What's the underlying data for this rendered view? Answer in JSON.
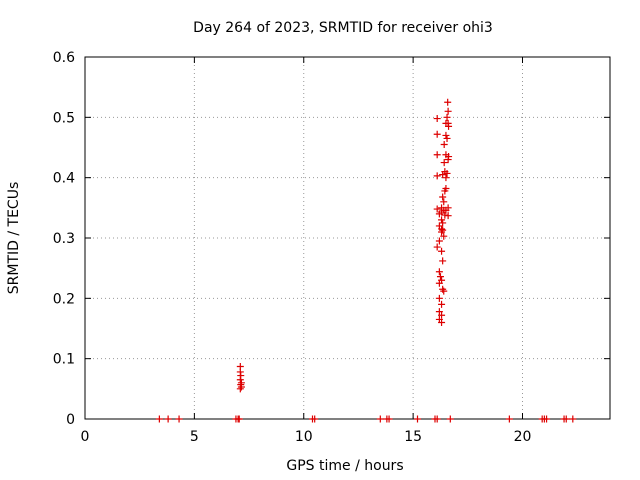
{
  "chart_data": {
    "type": "scatter",
    "title": "Day 264 of 2023, SRMTID for receiver ohi3",
    "xlabel": "GPS time / hours",
    "ylabel": "SRMTID / TECUs",
    "xlim": [
      0,
      24
    ],
    "ylim": [
      0,
      0.6
    ],
    "x_ticks": [
      0,
      5,
      10,
      15,
      20
    ],
    "y_ticks": [
      0,
      0.1,
      0.2,
      0.3,
      0.4,
      0.5,
      0.6
    ],
    "x_tick_labels": [
      "0",
      "5",
      "10",
      "15",
      "20"
    ],
    "y_tick_labels": [
      "0",
      "0.1",
      "0.2",
      "0.3",
      "0.4",
      "0.5",
      "0.6"
    ],
    "grid": true,
    "marker": "+",
    "color": "#dd0000",
    "series": [
      {
        "name": "ohi3",
        "points": [
          [
            3.4,
            0
          ],
          [
            3.8,
            0
          ],
          [
            4.3,
            0
          ],
          [
            6.9,
            0
          ],
          [
            7.0,
            0
          ],
          [
            7.05,
            0
          ],
          [
            10.4,
            0
          ],
          [
            10.5,
            0
          ],
          [
            13.5,
            0
          ],
          [
            13.8,
            0
          ],
          [
            13.9,
            0
          ],
          [
            15.2,
            0
          ],
          [
            16.0,
            0
          ],
          [
            16.1,
            0
          ],
          [
            16.7,
            0
          ],
          [
            19.4,
            0
          ],
          [
            20.9,
            0
          ],
          [
            21.0,
            0
          ],
          [
            21.1,
            0
          ],
          [
            21.9,
            0
          ],
          [
            22.0,
            0
          ],
          [
            22.3,
            0
          ],
          [
            7.1,
            0.087
          ],
          [
            7.1,
            0.078
          ],
          [
            7.12,
            0.072
          ],
          [
            7.1,
            0.065
          ],
          [
            7.15,
            0.06
          ],
          [
            7.12,
            0.057
          ],
          [
            7.15,
            0.053
          ],
          [
            7.1,
            0.05
          ],
          [
            16.58,
            0.525
          ],
          [
            16.6,
            0.51
          ],
          [
            16.55,
            0.5
          ],
          [
            16.1,
            0.498
          ],
          [
            16.6,
            0.49
          ],
          [
            16.5,
            0.49
          ],
          [
            16.62,
            0.485
          ],
          [
            16.1,
            0.472
          ],
          [
            16.5,
            0.47
          ],
          [
            16.55,
            0.465
          ],
          [
            16.42,
            0.455
          ],
          [
            16.1,
            0.438
          ],
          [
            16.5,
            0.438
          ],
          [
            16.62,
            0.435
          ],
          [
            16.6,
            0.43
          ],
          [
            16.42,
            0.425
          ],
          [
            16.45,
            0.41
          ],
          [
            16.55,
            0.407
          ],
          [
            16.35,
            0.405
          ],
          [
            16.1,
            0.403
          ],
          [
            16.5,
            0.4
          ],
          [
            16.5,
            0.382
          ],
          [
            16.45,
            0.378
          ],
          [
            16.35,
            0.368
          ],
          [
            16.4,
            0.36
          ],
          [
            16.6,
            0.35
          ],
          [
            16.3,
            0.35
          ],
          [
            16.1,
            0.348
          ],
          [
            16.4,
            0.346
          ],
          [
            16.5,
            0.346
          ],
          [
            16.3,
            0.343
          ],
          [
            16.2,
            0.34
          ],
          [
            16.45,
            0.338
          ],
          [
            16.6,
            0.337
          ],
          [
            16.3,
            0.33
          ],
          [
            16.35,
            0.325
          ],
          [
            16.2,
            0.32
          ],
          [
            16.3,
            0.315
          ],
          [
            16.35,
            0.313
          ],
          [
            16.3,
            0.31
          ],
          [
            16.4,
            0.303
          ],
          [
            16.2,
            0.295
          ],
          [
            16.1,
            0.285
          ],
          [
            16.3,
            0.278
          ],
          [
            16.35,
            0.262
          ],
          [
            16.2,
            0.244
          ],
          [
            16.25,
            0.236
          ],
          [
            16.3,
            0.23
          ],
          [
            16.2,
            0.225
          ],
          [
            16.35,
            0.215
          ],
          [
            16.4,
            0.212
          ],
          [
            16.2,
            0.2
          ],
          [
            16.3,
            0.19
          ],
          [
            16.2,
            0.178
          ],
          [
            16.3,
            0.172
          ],
          [
            16.2,
            0.165
          ],
          [
            16.3,
            0.16
          ]
        ]
      }
    ]
  }
}
